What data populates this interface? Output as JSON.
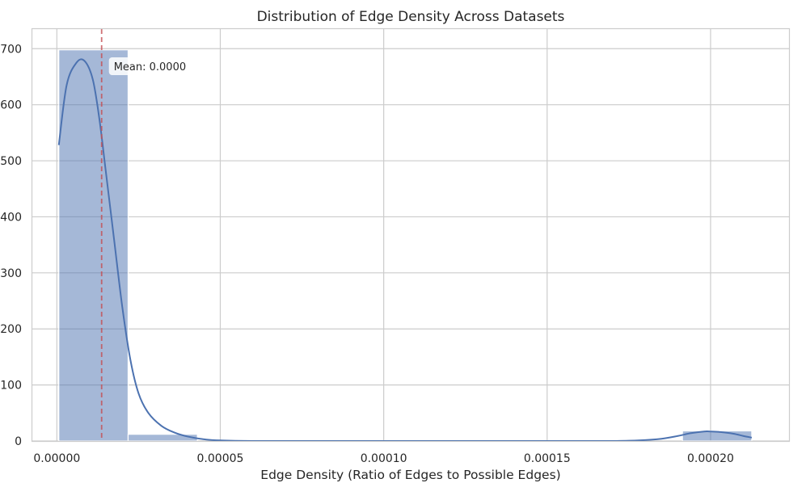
{
  "chart_data": {
    "type": "bar",
    "title": "Distribution of Edge Density Across Datasets",
    "xlabel": "Edge Density (Ratio of Edges to Possible Edges)",
    "ylabel": "",
    "xlim": [
      -7.5e-06,
      0.000224
    ],
    "ylim": [
      0,
      735
    ],
    "x_ticks": [
      0,
      5e-05,
      0.0001,
      0.00015,
      0.0002
    ],
    "x_tick_labels": [
      "0.00000",
      "0.00005",
      "0.00010",
      "0.00015",
      "0.00020"
    ],
    "y_ticks": [
      0,
      100,
      200,
      300,
      400,
      500,
      600,
      700
    ],
    "y_tick_labels": [
      "0",
      "100",
      "200",
      "300",
      "400",
      "500",
      "600",
      "700"
    ],
    "grid": true,
    "histogram": {
      "bin_edges": [
        6e-07,
        2.18e-05,
        4.3e-05,
        6.42e-05,
        8.54e-05,
        0.0001066,
        0.0001278,
        0.000149,
        0.0001702,
        0.0001914,
        0.0002126
      ],
      "counts": [
        698,
        12,
        0,
        0,
        0,
        0,
        0,
        0,
        0,
        18
      ],
      "color": "#4c72b0"
    },
    "kde": {
      "x": [
        6e-07,
        3e-06,
        6e-06,
        8.5e-06,
        1.1e-05,
        1.3e-05,
        1.5e-05,
        1.75e-05,
        2e-05,
        2.25e-05,
        2.5e-05,
        2.8e-05,
        3.2e-05,
        3.6e-05,
        4e-05,
        4.5e-05,
        5e-05,
        6e-05,
        8e-05,
        0.0001,
        0.00012,
        0.00014,
        0.00016,
        0.00017,
        0.000178,
        0.000185,
        0.00019,
        0.000194,
        0.000198,
        0.0002,
        0.000203,
        0.000207,
        0.00021,
        0.0002126
      ],
      "y": [
        528,
        635,
        675,
        678,
        645,
        575,
        480,
        360,
        240,
        145,
        85,
        50,
        27,
        15,
        8,
        3,
        1,
        0,
        0,
        0,
        0,
        0,
        0,
        0,
        1,
        4,
        9,
        14,
        17,
        17,
        16,
        13,
        9,
        6
      ],
      "color": "#4c72b0"
    },
    "mean": {
      "value": 1.37e-05,
      "label": "Mean: 0.0000",
      "color": "#dd8452"
    }
  }
}
